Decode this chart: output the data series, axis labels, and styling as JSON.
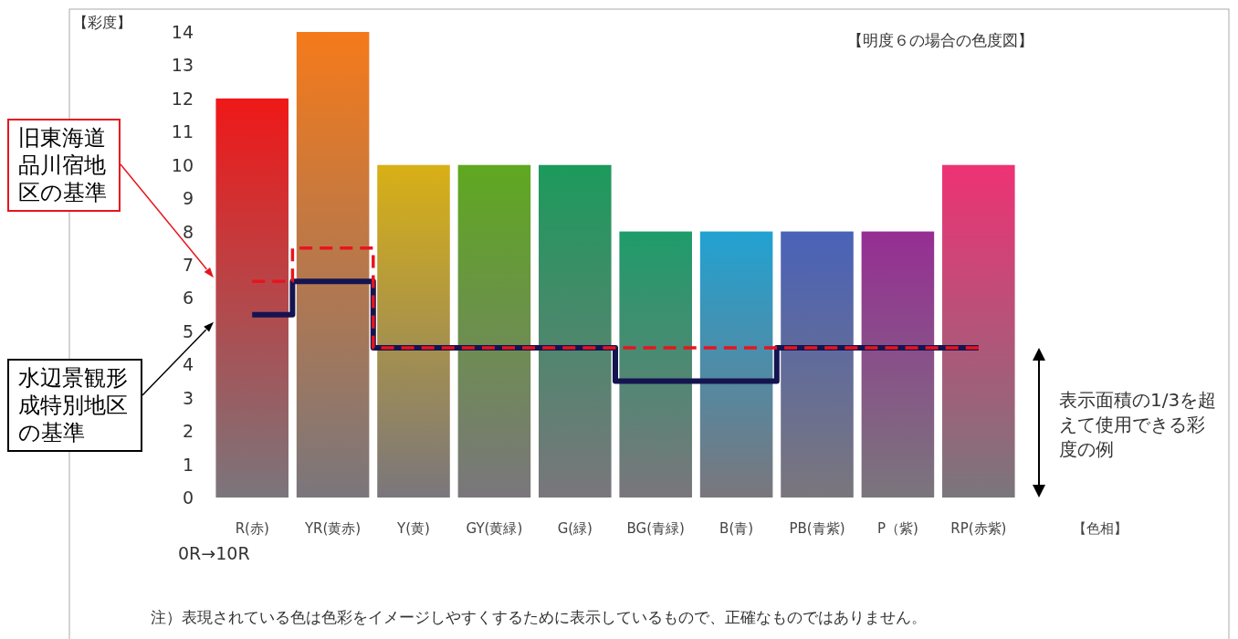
{
  "chart_data": {
    "type": "bar",
    "title": "【明度６の場合の色度図】",
    "xlabel": "【色相】",
    "ylabel": "【彩度】",
    "categories": [
      "R(赤)",
      "YR(黄赤)",
      "Y(黄)",
      "GY(黄緑)",
      "G(緑)",
      "BG(青緑)",
      "B(青)",
      "PB(青紫)",
      "P（紫)",
      "RP(赤紫)"
    ],
    "ylim": [
      0,
      14
    ],
    "yticks": [
      0,
      1,
      2,
      3,
      4,
      5,
      6,
      7,
      8,
      9,
      10,
      11,
      12,
      13,
      14
    ],
    "series": [
      {
        "colors": [
          "#f01818",
          "#f57a1a",
          "#d8b016",
          "#5fa820",
          "#1c9a5c",
          "#1f9c6a",
          "#22a2d2",
          "#4a62b8",
          "#962e94",
          "#ee3274"
        ],
        "values": [
          12,
          14,
          10,
          10,
          10,
          8,
          8,
          8,
          8,
          10
        ]
      },
      {
        "type": "step",
        "color": "#e8141e",
        "line_style": "dashed",
        "values": [
          6.5,
          7.5,
          4.5,
          4.5,
          4.5,
          4.5,
          4.5,
          4.5,
          4.5,
          4.5
        ]
      },
      {
        "type": "step",
        "color": "#141450",
        "line_style": "solid",
        "values": [
          5.5,
          6.5,
          4.5,
          4.5,
          4.5,
          3.5,
          3.5,
          4.5,
          4.5,
          4.5
        ]
      }
    ],
    "annotations": [
      "旧東海道品川宿地区の基準",
      "水辺景観形成特別地区の基準",
      "表示面積の1/3を超えて使用できる彩度の例",
      "0R→10R",
      "注）表現されている色は色彩をイメージしやすくするために表示しているもので、正確なものではありません。"
    ]
  }
}
